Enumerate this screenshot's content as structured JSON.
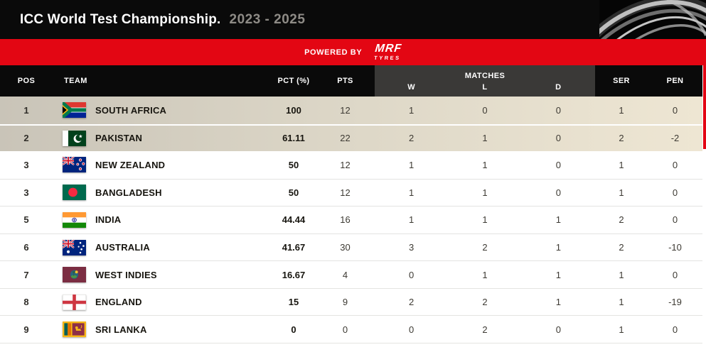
{
  "title": {
    "main": "ICC World Test Championship.",
    "period": "2023 - 2025"
  },
  "powered_bar": {
    "label": "POWERED BY",
    "sponsor_name": "MRF",
    "sponsor_sub": "TYRES"
  },
  "table": {
    "headers": {
      "pos": "POS",
      "team": "TEAM",
      "pct": "PCT (%)",
      "pts": "PTS",
      "matches": "MATCHES",
      "w": "W",
      "l": "L",
      "d": "D",
      "ser": "SER",
      "pen": "PEN"
    },
    "rows": [
      {
        "pos": "1",
        "team": "SOUTH AFRICA",
        "flag": "south-africa",
        "pct": "100",
        "pts": "12",
        "w": "1",
        "l": "0",
        "d": "0",
        "ser": "1",
        "pen": "0",
        "highlight": true
      },
      {
        "pos": "2",
        "team": "PAKISTAN",
        "flag": "pakistan",
        "pct": "61.11",
        "pts": "22",
        "w": "2",
        "l": "1",
        "d": "0",
        "ser": "2",
        "pen": "-2",
        "highlight": true
      },
      {
        "pos": "3",
        "team": "NEW ZEALAND",
        "flag": "new-zealand",
        "pct": "50",
        "pts": "12",
        "w": "1",
        "l": "1",
        "d": "0",
        "ser": "1",
        "pen": "0",
        "highlight": false
      },
      {
        "pos": "3",
        "team": "BANGLADESH",
        "flag": "bangladesh",
        "pct": "50",
        "pts": "12",
        "w": "1",
        "l": "1",
        "d": "0",
        "ser": "1",
        "pen": "0",
        "highlight": false
      },
      {
        "pos": "5",
        "team": "INDIA",
        "flag": "india",
        "pct": "44.44",
        "pts": "16",
        "w": "1",
        "l": "1",
        "d": "1",
        "ser": "2",
        "pen": "0",
        "highlight": false
      },
      {
        "pos": "6",
        "team": "AUSTRALIA",
        "flag": "australia",
        "pct": "41.67",
        "pts": "30",
        "w": "3",
        "l": "2",
        "d": "1",
        "ser": "2",
        "pen": "-10",
        "highlight": false
      },
      {
        "pos": "7",
        "team": "WEST INDIES",
        "flag": "west-indies",
        "pct": "16.67",
        "pts": "4",
        "w": "0",
        "l": "1",
        "d": "1",
        "ser": "1",
        "pen": "0",
        "highlight": false
      },
      {
        "pos": "8",
        "team": "ENGLAND",
        "flag": "england",
        "pct": "15",
        "pts": "9",
        "w": "2",
        "l": "2",
        "d": "1",
        "ser": "1",
        "pen": "-19",
        "highlight": false
      },
      {
        "pos": "9",
        "team": "SRI LANKA",
        "flag": "sri-lanka",
        "pct": "0",
        "pts": "0",
        "w": "0",
        "l": "2",
        "d": "0",
        "ser": "1",
        "pen": "0",
        "highlight": false
      }
    ]
  },
  "colors": {
    "accent_red": "#e30613",
    "bar_black": "#0a0a0a",
    "matches_header_bg": "#3a3937",
    "highlight_row_left": "#c9c4b8",
    "highlight_row_right": "#eee6d3",
    "period_text": "#8e8b86"
  }
}
